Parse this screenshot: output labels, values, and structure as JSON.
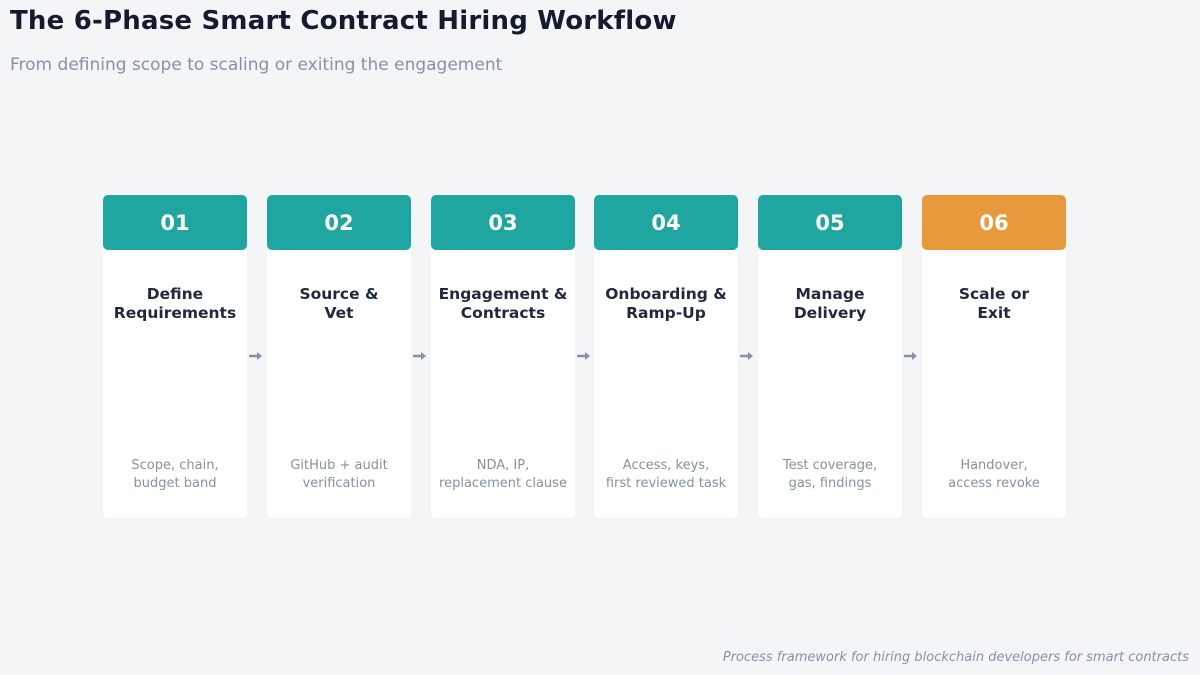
{
  "header": {
    "title": "The 6-Phase Smart Contract Hiring Workflow",
    "subtitle": "From defining scope to scaling or exiting the engagement"
  },
  "colors": {
    "teal": "#1fa6a0",
    "orange": "#e8993c",
    "arrow": "#8592a3"
  },
  "phases": [
    {
      "num": "01",
      "title": "Define\nRequirements",
      "desc": "Scope, chain,\nbudget band",
      "accent": "#1fa6a0"
    },
    {
      "num": "02",
      "title": "Source &\nVet",
      "desc": "GitHub + audit\nverification",
      "accent": "#1fa6a0"
    },
    {
      "num": "03",
      "title": "Engagement &\nContracts",
      "desc": "NDA, IP,\nreplacement clause",
      "accent": "#1fa6a0"
    },
    {
      "num": "04",
      "title": "Onboarding &\nRamp-Up",
      "desc": "Access, keys,\nfirst reviewed task",
      "accent": "#1fa6a0"
    },
    {
      "num": "05",
      "title": "Manage\nDelivery",
      "desc": "Test coverage,\ngas, findings",
      "accent": "#1fa6a0"
    },
    {
      "num": "06",
      "title": "Scale or\nExit",
      "desc": "Handover,\naccess revoke",
      "accent": "#e8993c"
    }
  ],
  "footer": {
    "note": "Process framework for hiring blockchain developers for smart contracts"
  }
}
